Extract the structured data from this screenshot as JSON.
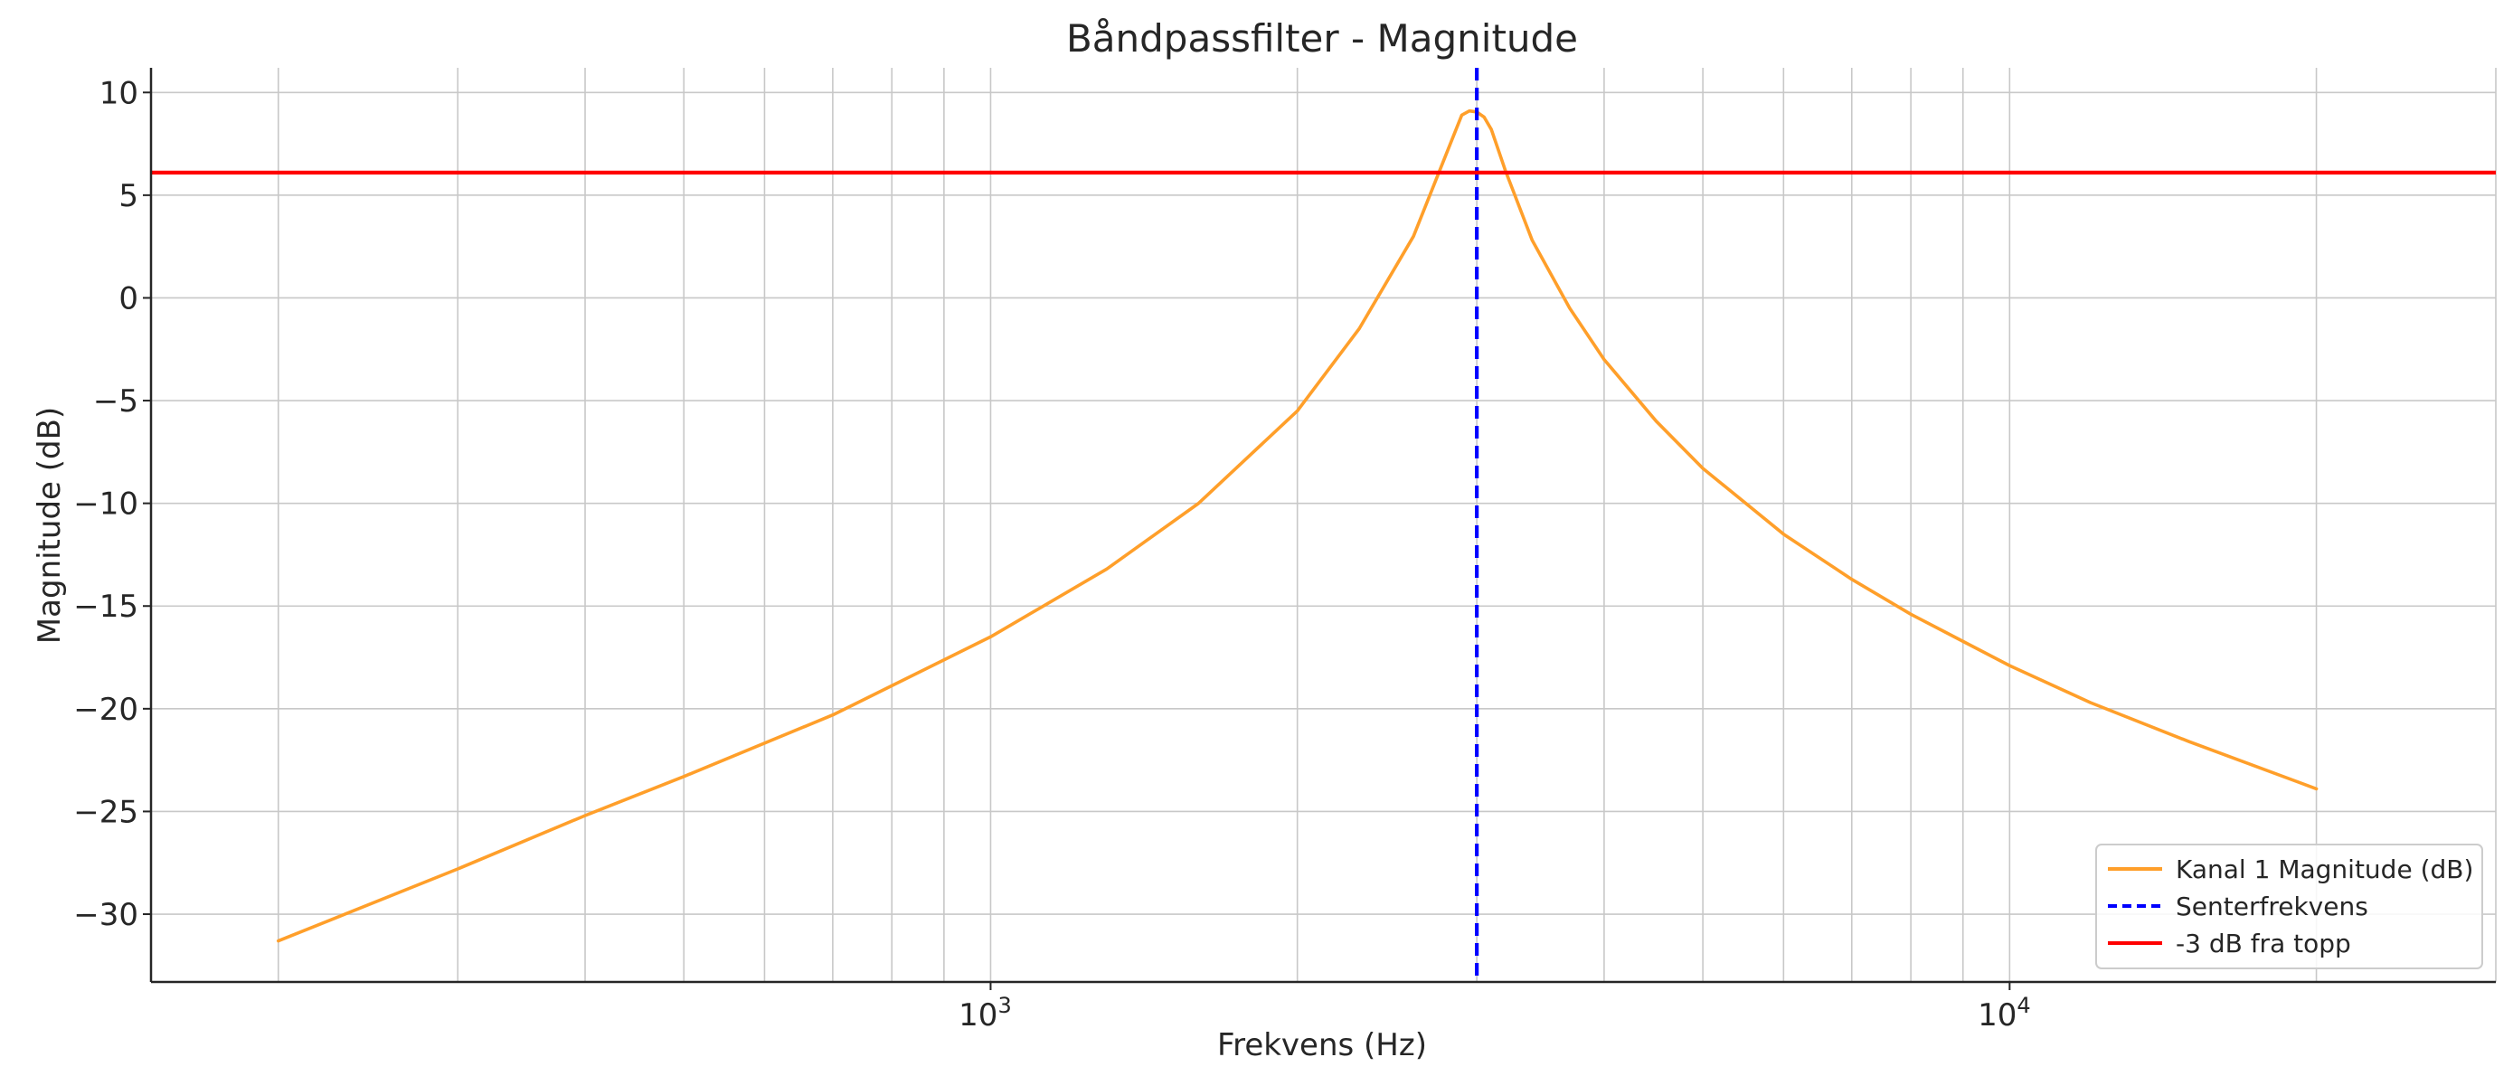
{
  "chart_data": {
    "type": "line",
    "title": "Båndpassfilter - Magnitude",
    "xlabel": "Frekvens (Hz)",
    "ylabel": "Magnitude (dB)",
    "xscale": "log",
    "xlim": [
      150,
      30000
    ],
    "ylim": [
      -33.3,
      11.2
    ],
    "grid": true,
    "grid_which": "both",
    "legend_position": "bottom-right",
    "x_tick_labels": [
      {
        "value": 1000,
        "base": "10",
        "exp": "3"
      },
      {
        "value": 10000,
        "base": "10",
        "exp": "4"
      }
    ],
    "y_ticks": [
      10,
      5,
      0,
      -5,
      -10,
      -15,
      -20,
      -25,
      -30
    ],
    "y_tick_labels": [
      "10",
      "5",
      "0",
      "−5",
      "−10",
      "−15",
      "−20",
      "−25",
      "−30"
    ],
    "series": [
      {
        "name": "Kanal 1 Magnitude (dB)",
        "color": "#ff9f2a",
        "style": "solid",
        "kind": "curve",
        "x": [
          200,
          300,
          400,
          500,
          700,
          1000,
          1300,
          1600,
          2000,
          2300,
          2600,
          2800,
          2900,
          2950,
          3000,
          3050,
          3100,
          3200,
          3400,
          3700,
          4000,
          4500,
          5000,
          6000,
          7000,
          8000,
          10000,
          12000,
          15000,
          20000
        ],
        "values": [
          -31.3,
          -27.8,
          -25.2,
          -23.3,
          -20.3,
          -16.5,
          -13.2,
          -10.0,
          -5.5,
          -1.5,
          3.0,
          7.0,
          8.9,
          9.1,
          9.05,
          8.8,
          8.2,
          6.2,
          2.8,
          -0.5,
          -3.0,
          -6.0,
          -8.3,
          -11.5,
          -13.7,
          -15.4,
          -17.9,
          -19.7,
          -21.6,
          -23.9
        ]
      },
      {
        "name": "Senterfrekvens",
        "color": "#0000ff",
        "style": "dashed",
        "kind": "vline",
        "x_value": 3000
      },
      {
        "name": "-3 dB fra topp",
        "color": "#ff0000",
        "style": "solid",
        "kind": "hline",
        "y_value": 6.1
      }
    ]
  }
}
